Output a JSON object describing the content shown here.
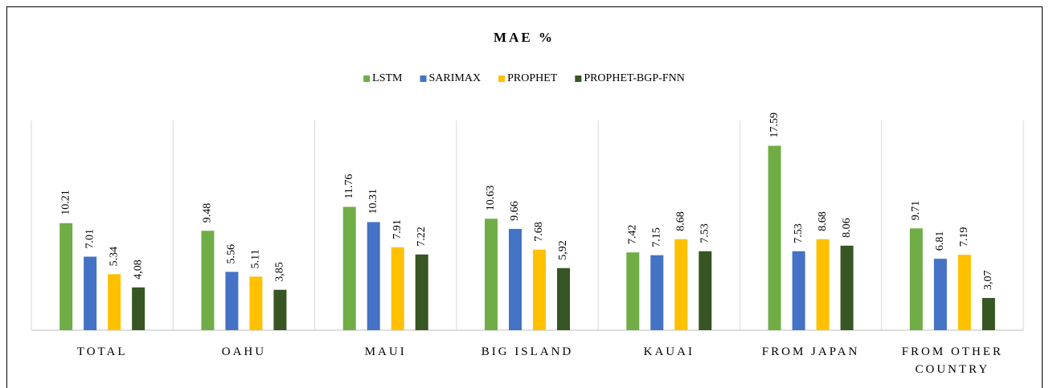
{
  "chart_data": {
    "type": "bar",
    "title": "MAE %",
    "categories": [
      "TOTAL",
      "OAHU",
      "MAUI",
      "BIG ISLAND",
      "KAUAI",
      "FROM JAPAN",
      "FROM OTHER COUNTRY"
    ],
    "series": [
      {
        "name": "LSTM",
        "color": "#70ad47",
        "values": [
          10.21,
          9.48,
          11.76,
          10.63,
          7.42,
          17.59,
          9.71
        ]
      },
      {
        "name": "SARIMAX",
        "color": "#4472c4",
        "values": [
          7.01,
          5.56,
          10.31,
          9.66,
          7.15,
          7.53,
          6.81
        ]
      },
      {
        "name": "PROPHET",
        "color": "#ffc000",
        "values": [
          5.34,
          5.11,
          7.91,
          7.68,
          8.68,
          8.68,
          7.19
        ]
      },
      {
        "name": "PROPHET-BGP-FNN",
        "color": "#375623",
        "values": [
          4.08,
          3.85,
          7.22,
          5.92,
          7.53,
          8.06,
          3.07
        ],
        "value_labels": [
          "4,08",
          "3,85",
          "7.22",
          "5,92",
          "7.53",
          "8.06",
          "3,07"
        ]
      }
    ],
    "ylim": [
      0,
      20
    ],
    "legend": "top"
  }
}
